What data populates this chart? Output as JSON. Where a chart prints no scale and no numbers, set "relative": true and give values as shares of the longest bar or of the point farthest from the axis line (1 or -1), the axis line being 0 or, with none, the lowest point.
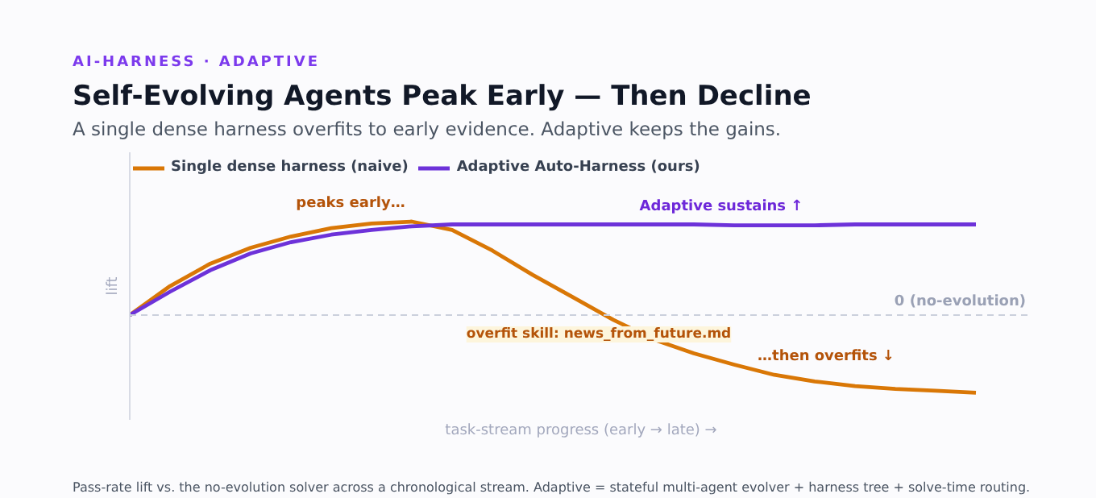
{
  "chart_data": {
    "type": "line",
    "relative": true,
    "title": "Self-Evolving Agents Peak Early — Then Decline",
    "subtitle": "A single dense harness overfits to early evidence. Adaptive keeps the gains.",
    "xlabel": "task-stream progress (early → late) →",
    "ylabel": "lift",
    "categories": [
      null,
      null,
      null,
      null,
      null,
      null,
      null,
      null,
      null,
      null,
      null,
      null,
      null,
      null,
      null,
      null,
      null,
      null,
      null,
      null,
      null,
      null
    ],
    "series": [
      {
        "name": "Single dense harness (naive)",
        "color": "#d97706",
        "values": [
          0,
          0.31,
          0.55,
          0.72,
          0.84,
          0.93,
          0.98,
          1.0,
          0.91,
          0.69,
          0.43,
          0.19,
          -0.05,
          -0.26,
          -0.41,
          -0.53,
          -0.64,
          -0.71,
          -0.76,
          -0.79,
          -0.81,
          -0.83
        ]
      },
      {
        "name": "Adaptive Auto-Harness (ours)",
        "color": "#6d32d9",
        "values": [
          0,
          0.25,
          0.48,
          0.66,
          0.78,
          0.86,
          0.91,
          0.95,
          0.97,
          0.97,
          0.97,
          0.97,
          0.97,
          0.97,
          0.97,
          0.96,
          0.96,
          0.96,
          0.97,
          0.97,
          0.97,
          0.97
        ]
      }
    ],
    "ref_lines": [
      {
        "axis": "y",
        "value": 0,
        "label": "0 (no-evolution)",
        "color": "#cbd0dc",
        "line_style": "dashed"
      }
    ],
    "annotations": [
      "AI-HARNESS · ADAPTIVE",
      "peaks early…",
      "Adaptive sustains ↑",
      "overfit skill: news_from_future.md",
      "…then overfits ↓",
      "Pass-rate lift vs. the no-evolution solver across a chronological stream. Adaptive = stateful multi-agent evolver + harness tree + solve-time routing."
    ],
    "legend": "top",
    "grid": false,
    "marker": "none",
    "line_style": "solid"
  }
}
